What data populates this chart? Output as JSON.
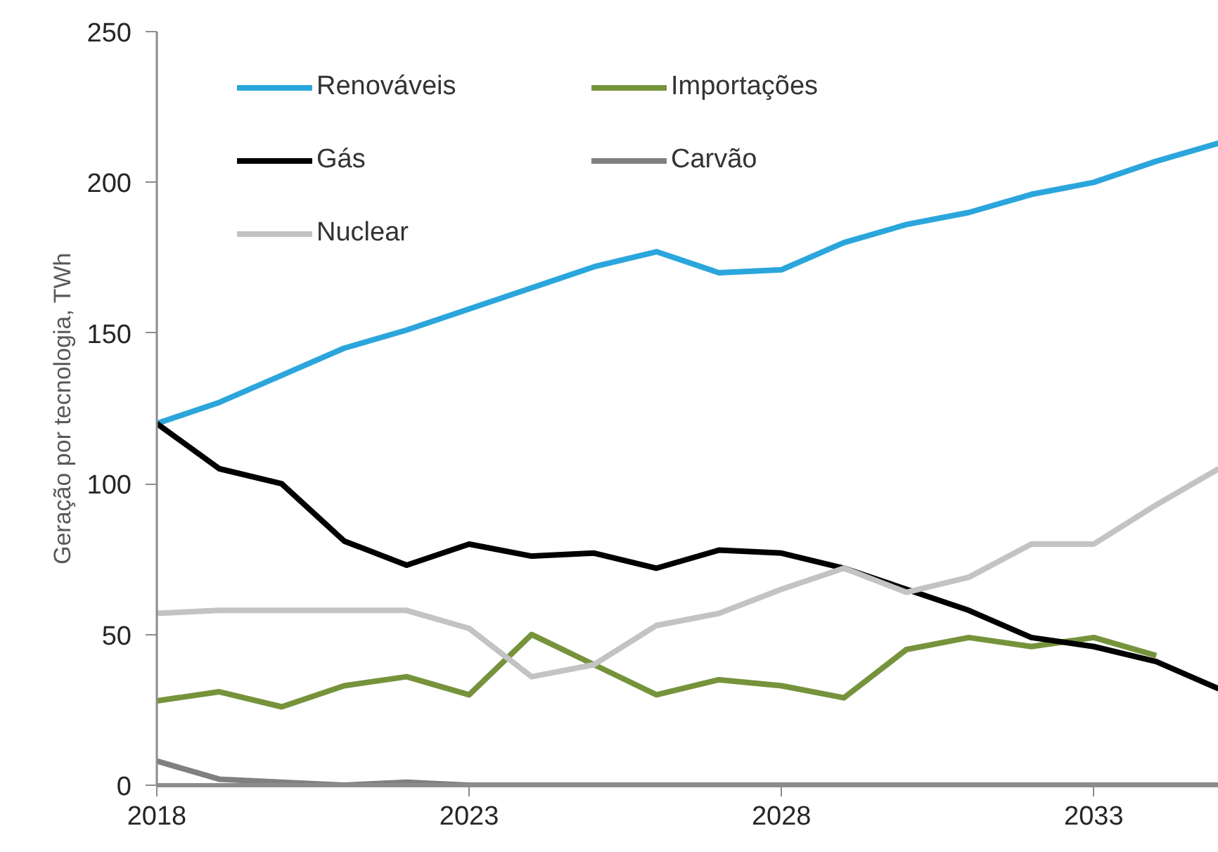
{
  "chart_data": {
    "type": "line",
    "ylabel": "Geração por tecnologia, TWh",
    "x": [
      2018,
      2019,
      2020,
      2021,
      2022,
      2023,
      2024,
      2025,
      2026,
      2027,
      2028,
      2029,
      2030,
      2031,
      2032,
      2033,
      2034,
      2035
    ],
    "xlim": [
      2018,
      2035
    ],
    "xticks": [
      2018,
      2023,
      2028,
      2033
    ],
    "ylim": [
      0,
      250
    ],
    "yticks": [
      0,
      50,
      100,
      150,
      200,
      250
    ],
    "series": [
      {
        "name": "Renováveis",
        "color": "#2ba6dc",
        "values": [
          120,
          127,
          136,
          145,
          151,
          158,
          165,
          172,
          177,
          170,
          171,
          180,
          186,
          190,
          196,
          200,
          207,
          213
        ]
      },
      {
        "name": "Importações",
        "color": "#76933c",
        "values": [
          28,
          31,
          26,
          33,
          36,
          30,
          50,
          40,
          30,
          35,
          33,
          29,
          45,
          49,
          46,
          49,
          43,
          null
        ]
      },
      {
        "name": "Gás",
        "color": "#000000",
        "values": [
          120,
          105,
          100,
          81,
          73,
          80,
          76,
          77,
          72,
          78,
          77,
          72,
          65,
          58,
          49,
          46,
          41,
          32
        ]
      },
      {
        "name": "Carvão",
        "color": "#808080",
        "values": [
          8,
          2,
          1,
          0,
          1,
          0,
          0,
          0,
          0,
          0,
          0,
          0,
          0,
          0,
          0,
          0,
          0,
          0
        ]
      },
      {
        "name": "Nuclear",
        "color": "#c3c3c3",
        "values": [
          57,
          58,
          58,
          58,
          58,
          52,
          36,
          40,
          53,
          57,
          65,
          72,
          64,
          69,
          80,
          80,
          93,
          105
        ]
      }
    ],
    "legend": "top left",
    "grid": false
  }
}
